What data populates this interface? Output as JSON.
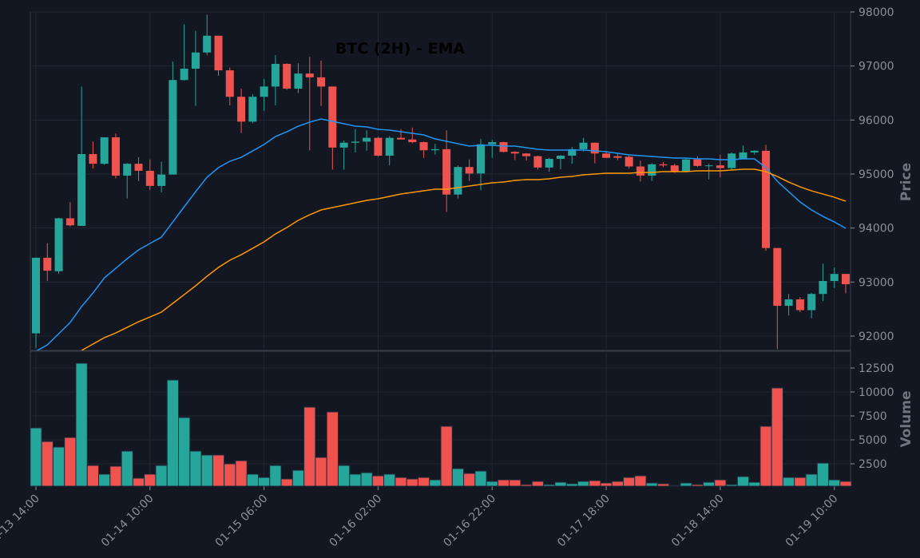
{
  "chart_data": {
    "type": "candlestick",
    "title": "BTC (2H) - EMA",
    "ylabel": "Price",
    "categories": [
      "01-13 14:00",
      null,
      null,
      null,
      null,
      null,
      null,
      null,
      null,
      null,
      "01-14 10:00",
      null,
      null,
      null,
      null,
      null,
      null,
      null,
      null,
      null,
      "01-15 06:00",
      null,
      null,
      null,
      null,
      null,
      null,
      null,
      null,
      null,
      "01-16 02:00",
      null,
      null,
      null,
      null,
      null,
      null,
      null,
      null,
      null,
      "01-16 22:00",
      null,
      null,
      null,
      null,
      null,
      null,
      null,
      null,
      null,
      "01-17 18:00",
      null,
      null,
      null,
      null,
      null,
      null,
      null,
      null,
      null,
      "01-18 14:00",
      null,
      null,
      null,
      null,
      null,
      null,
      null,
      null,
      null,
      "01-19 10:00",
      null
    ],
    "open": [
      92050,
      93450,
      93200,
      94180,
      94040,
      95370,
      95190,
      95680,
      94970,
      95190,
      95060,
      94780,
      94990,
      96740,
      96950,
      97250,
      97560,
      96920,
      96430,
      95970,
      96430,
      96620,
      97040,
      96580,
      96860,
      96790,
      96620,
      95490,
      95580,
      95600,
      95670,
      95340,
      95670,
      95640,
      95590,
      95440,
      95460,
      94620,
      95130,
      95010,
      95550,
      95590,
      95410,
      95380,
      95330,
      95120,
      95280,
      95340,
      95460,
      95580,
      95380,
      95330,
      95320,
      95140,
      94970,
      95180,
      95160,
      95040,
      95270,
      95150,
      95160,
      95110,
      95280,
      95400,
      95430,
      93630,
      92560,
      92680,
      92480,
      92780,
      93020,
      93150
    ],
    "high": [
      93450,
      93720,
      94190,
      94480,
      96620,
      95600,
      95680,
      95750,
      95200,
      95310,
      95270,
      95230,
      97080,
      97770,
      97650,
      97950,
      97560,
      96970,
      96580,
      96480,
      96760,
      97200,
      97050,
      97050,
      97170,
      97100,
      96620,
      95620,
      95830,
      95810,
      95690,
      95700,
      95830,
      95860,
      95600,
      95560,
      95810,
      95160,
      95270,
      95650,
      95630,
      95600,
      95420,
      95390,
      95340,
      95300,
      95350,
      95500,
      95670,
      95580,
      95430,
      95390,
      95340,
      95250,
      95200,
      95220,
      95190,
      95290,
      95330,
      95190,
      95360,
      95400,
      95530,
      95440,
      95540,
      93630,
      92780,
      92720,
      92800,
      93340,
      93270,
      93150
    ],
    "low": [
      91780,
      93020,
      93150,
      94030,
      94040,
      95100,
      95170,
      94920,
      94550,
      94870,
      94700,
      94660,
      94990,
      96730,
      96260,
      97200,
      96820,
      96270,
      95760,
      95940,
      96170,
      96270,
      96560,
      96500,
      95440,
      96260,
      95080,
      95080,
      95400,
      95430,
      95320,
      95160,
      95640,
      95570,
      95300,
      95360,
      94300,
      94550,
      94870,
      94700,
      95300,
      95400,
      95260,
      95250,
      95080,
      95040,
      95090,
      95190,
      95420,
      95200,
      95300,
      95260,
      95100,
      94860,
      94870,
      95130,
      95020,
      95030,
      95130,
      94900,
      94940,
      95080,
      95280,
      95360,
      93580,
      91760,
      92380,
      92440,
      92330,
      92650,
      92890,
      92790
    ],
    "close": [
      93450,
      93210,
      94180,
      94050,
      95370,
      95190,
      95680,
      94970,
      95190,
      95060,
      94780,
      94990,
      96740,
      96950,
      97250,
      97560,
      96920,
      96430,
      95970,
      96430,
      96620,
      97040,
      96580,
      96860,
      96790,
      96620,
      95490,
      95580,
      95600,
      95670,
      95340,
      95670,
      95640,
      95590,
      95440,
      95460,
      94620,
      95130,
      95010,
      95550,
      95590,
      95410,
      95380,
      95330,
      95120,
      95280,
      95340,
      95460,
      95580,
      95380,
      95300,
      95300,
      95140,
      94970,
      95180,
      95160,
      95040,
      95270,
      95150,
      95160,
      95110,
      95380,
      95400,
      95430,
      93630,
      92560,
      92680,
      92480,
      92780,
      93020,
      93150,
      92960
    ],
    "up_color": "#26a69a",
    "down_color": "#ef5350",
    "ylim": [
      91734,
      98000
    ],
    "yticks": [
      92000,
      93000,
      94000,
      95000,
      96000,
      97000,
      98000
    ],
    "grid": true,
    "overlays": [
      {
        "color": "#2196f3",
        "values": [
          91719,
          91837,
          92044,
          92251,
          92546,
          92797,
          93078,
          93256,
          93433,
          93596,
          93714,
          93832,
          94113,
          94394,
          94674,
          94941,
          95118,
          95236,
          95310,
          95428,
          95547,
          95694,
          95783,
          95886,
          95960,
          96019,
          95975,
          95931,
          95886,
          95872,
          95827,
          95813,
          95783,
          95753,
          95724,
          95650,
          95606,
          95561,
          95517,
          95532,
          95532,
          95517,
          95517,
          95487,
          95458,
          95443,
          95443,
          95443,
          95443,
          95428,
          95413,
          95384,
          95354,
          95340,
          95325,
          95310,
          95295,
          95295,
          95280,
          95280,
          95266,
          95266,
          95280,
          95280,
          95118,
          94867,
          94674,
          94482,
          94335,
          94216,
          94113,
          93995
        ]
      },
      {
        "color": "#ff9800",
        "values": [
          null,
          null,
          null,
          null,
          91734,
          91852,
          91970,
          92059,
          92162,
          92266,
          92354,
          92443,
          92606,
          92768,
          92931,
          93108,
          93271,
          93404,
          93507,
          93625,
          93744,
          93891,
          94010,
          94143,
          94246,
          94335,
          94379,
          94423,
          94468,
          94512,
          94542,
          94586,
          94630,
          94660,
          94689,
          94719,
          94719,
          94748,
          94778,
          94808,
          94837,
          94852,
          94882,
          94896,
          94896,
          94911,
          94941,
          94955,
          94985,
          95000,
          95015,
          95015,
          95015,
          95029,
          95029,
          95044,
          95044,
          95044,
          95059,
          95059,
          95059,
          95074,
          95088,
          95088,
          95044,
          94955,
          94852,
          94763,
          94689,
          94630,
          94571,
          94497
        ]
      }
    ],
    "volume": {
      "ylabel": "Volume",
      "values": [
        6250,
        4830,
        4250,
        5250,
        13000,
        2330,
        1420,
        2250,
        3830,
        1000,
        1420,
        2330,
        11250,
        7330,
        3830,
        3420,
        3420,
        2500,
        2830,
        1420,
        1080,
        2330,
        920,
        1830,
        8420,
        3170,
        7920,
        2330,
        1420,
        1580,
        1250,
        1420,
        1080,
        920,
        1080,
        830,
        6420,
        2000,
        1500,
        1750,
        670,
        830,
        830,
        330,
        670,
        330,
        580,
        420,
        670,
        750,
        500,
        670,
        1080,
        1250,
        500,
        420,
        250,
        500,
        330,
        580,
        830,
        330,
        1170,
        580,
        6420,
        10420,
        1080,
        1080,
        1420,
        2580,
        830,
        670
      ],
      "ylim": [
        167,
        14250
      ],
      "yticks": [
        2500,
        5000,
        7500,
        10000,
        12500
      ]
    }
  }
}
